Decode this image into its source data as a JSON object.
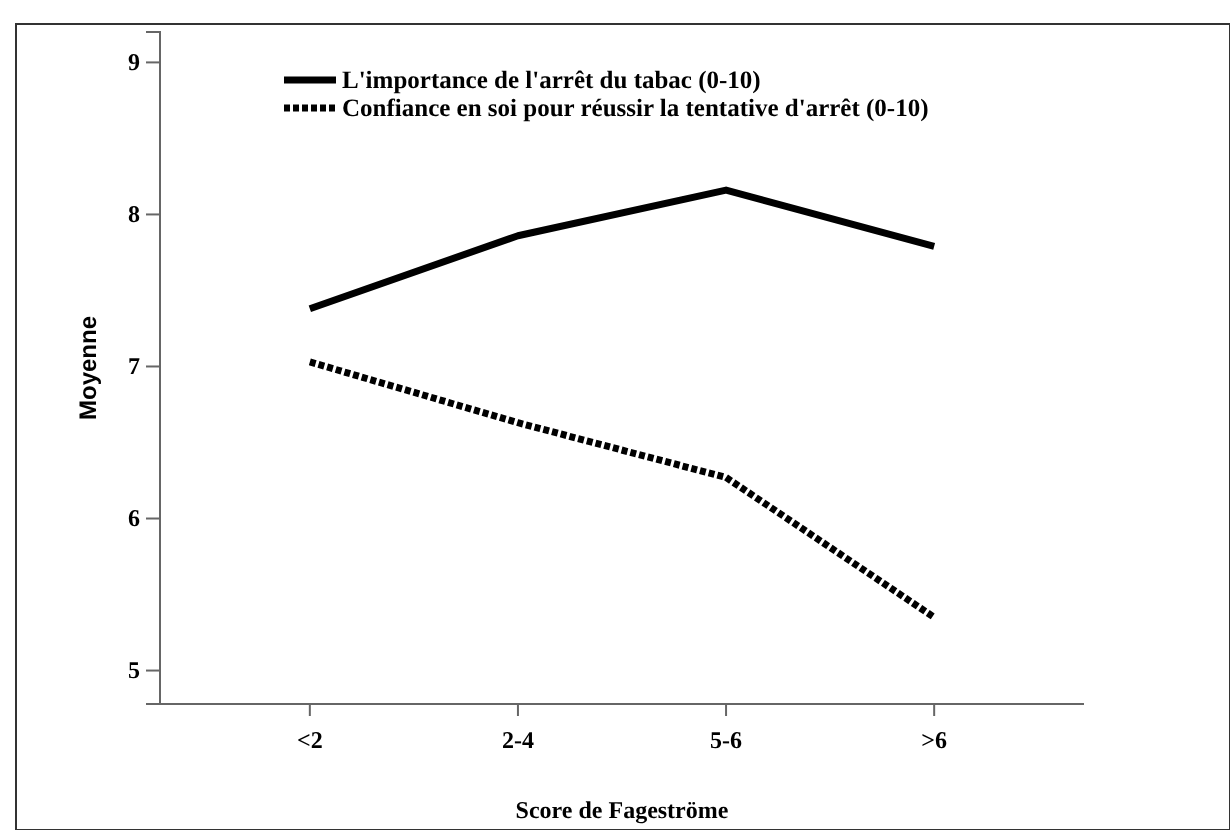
{
  "chart_data": {
    "type": "line",
    "xlabel": "Score de Fageströme",
    "ylabel": "Moyenne",
    "categories": [
      "<2",
      "2-4",
      "5-6",
      ">6"
    ],
    "series": [
      {
        "name": "L'importance de l'arrêt du tabac (0-10)",
        "color": "#000000",
        "line_style": "solid",
        "values": [
          7.38,
          7.86,
          8.16,
          7.79
        ]
      },
      {
        "name": "Confiance en soi pour réussir la tentative d'arrêt (0-10)",
        "color": "#000000",
        "line_style": "dotted",
        "values": [
          7.03,
          6.63,
          6.27,
          5.35
        ]
      }
    ],
    "ylim": [
      4.78,
      9.2
    ],
    "yticks": [
      5,
      6,
      7,
      8,
      9
    ],
    "grid": false,
    "legend": "top left",
    "marker": "none"
  }
}
